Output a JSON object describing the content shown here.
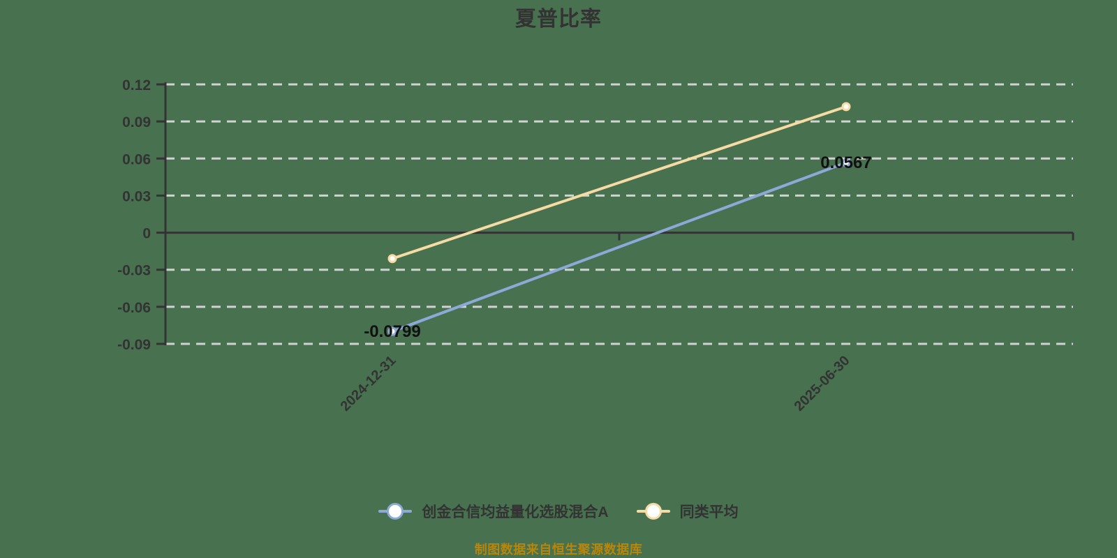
{
  "chart_data": {
    "type": "line",
    "title": "夏普比率",
    "categories": [
      "2024-12-31",
      "2025-06-30"
    ],
    "series": [
      {
        "name": "创金合信均益量化选股混合A",
        "color": "#8CA9D8",
        "values": [
          -0.0799,
          0.0567
        ],
        "point_labels": [
          "-0.0799",
          "0.0567"
        ]
      },
      {
        "name": "同类平均",
        "color": "#F6DBA4",
        "values": [
          -0.021,
          0.102
        ],
        "point_labels": [
          "",
          ""
        ]
      }
    ],
    "ylim": [
      -0.09,
      0.12
    ],
    "ytick_values": [
      0.12,
      0.09,
      0.06,
      0.03,
      0,
      -0.03,
      -0.06,
      -0.09
    ],
    "ytick_labels": [
      "0.12",
      "0.09",
      "0.06",
      "0.03",
      "0",
      "-0.03",
      "-0.06",
      "-0.09"
    ],
    "grid": "horizontal-dashed",
    "legend_position": "bottom",
    "colors": {
      "background": "#47714F",
      "axis": "#333333",
      "gridline": "#D2D2D2",
      "axis_label": "#333333",
      "data_label": "#111111",
      "marker_fill": "#FFFFFF"
    }
  },
  "footer": {
    "text": "制图数据来自恒生聚源数据库",
    "color": "#B8860B"
  }
}
